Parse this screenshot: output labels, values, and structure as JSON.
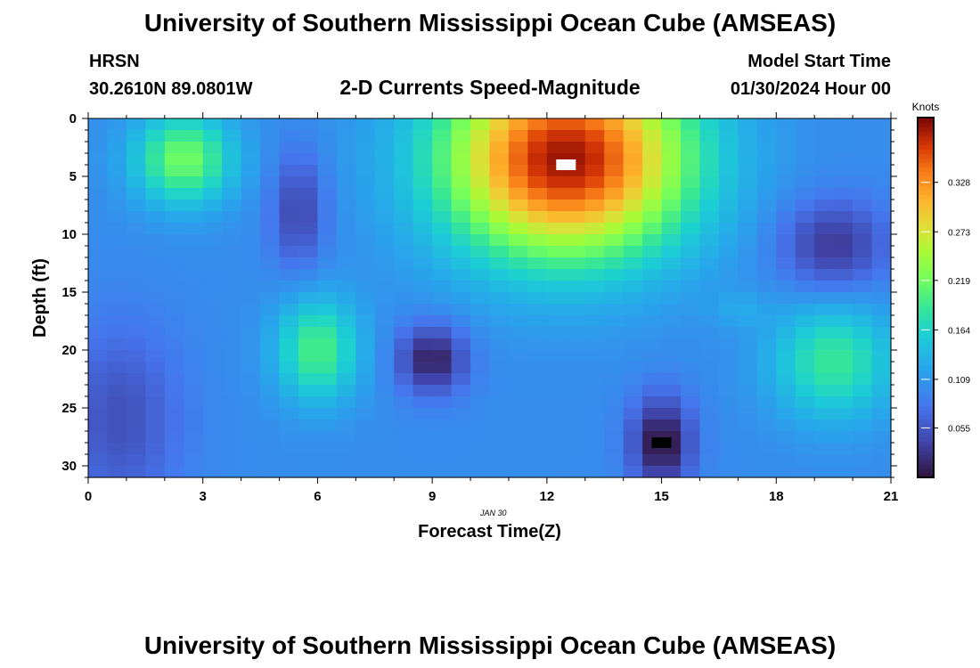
{
  "header": {
    "title": "University of Southern Mississippi Ocean Cube (AMSEAS)",
    "station": "HRSN",
    "coords": "30.2610N  89.0801W",
    "subtitle": "2-D Currents Speed-Magnitude",
    "model_label": "Model Start Time",
    "model_time": "01/30/2024 Hour 00",
    "date_label": "JAN 30",
    "footer_title": "University of Southern Mississippi Ocean Cube (AMSEAS)"
  },
  "chart_data": {
    "type": "heatmap",
    "title": "2-D Currents Speed-Magnitude",
    "xlabel": "Forecast Time(Z)",
    "ylabel": "Depth (ft)",
    "xlim": [
      0,
      21
    ],
    "ylim": [
      0,
      31
    ],
    "x_ticks": [
      0,
      3,
      6,
      9,
      12,
      15,
      18,
      21
    ],
    "y_ticks": [
      0,
      5,
      10,
      15,
      20,
      25,
      30
    ],
    "colorbar": {
      "label": "Knots",
      "min": 0.0,
      "max": 0.4,
      "ticks": [
        "0.055",
        "0.109",
        "0.164",
        "0.219",
        "0.273",
        "0.328"
      ]
    },
    "features": [
      {
        "x": 2.5,
        "depth": 3.5,
        "value": 0.22,
        "spread_x": 1.3,
        "spread_d": 4.0
      },
      {
        "x": 6.0,
        "depth": 20.0,
        "value": 0.2,
        "spread_x": 1.1,
        "spread_d": 4.5
      },
      {
        "x": 7.5,
        "depth": 15.5,
        "value": 0.1,
        "spread_x": 0.6,
        "spread_d": 1.5
      },
      {
        "x": 12.5,
        "depth": 3.5,
        "value": 0.39,
        "spread_x": 3.2,
        "spread_d": 8.5
      },
      {
        "x": 19.5,
        "depth": 21.0,
        "value": 0.19,
        "spread_x": 1.6,
        "spread_d": 5.0
      },
      {
        "x": 17.0,
        "depth": 16.5,
        "value": 0.12,
        "spread_x": 0.7,
        "spread_d": 1.5
      },
      {
        "x": 5.5,
        "depth": 8.0,
        "value": 0.04,
        "spread_x": 0.7,
        "spread_d": 5.0
      },
      {
        "x": 9.0,
        "depth": 20.8,
        "value": 0.01,
        "spread_x": 0.9,
        "spread_d": 3.0
      },
      {
        "x": 15.0,
        "depth": 28.0,
        "value": 0.0,
        "spread_x": 0.8,
        "spread_d": 4.0
      },
      {
        "x": 19.5,
        "depth": 11.0,
        "value": 0.03,
        "spread_x": 1.4,
        "spread_d": 4.0
      },
      {
        "x": 0.8,
        "depth": 26.0,
        "value": 0.05,
        "spread_x": 1.6,
        "spread_d": 8.0
      }
    ],
    "background_value": 0.1,
    "markers": [
      {
        "x": 12.5,
        "depth": 4.0,
        "color": "#ffffff"
      },
      {
        "x": 15.0,
        "depth": 28.0,
        "color": "#000000"
      }
    ]
  }
}
